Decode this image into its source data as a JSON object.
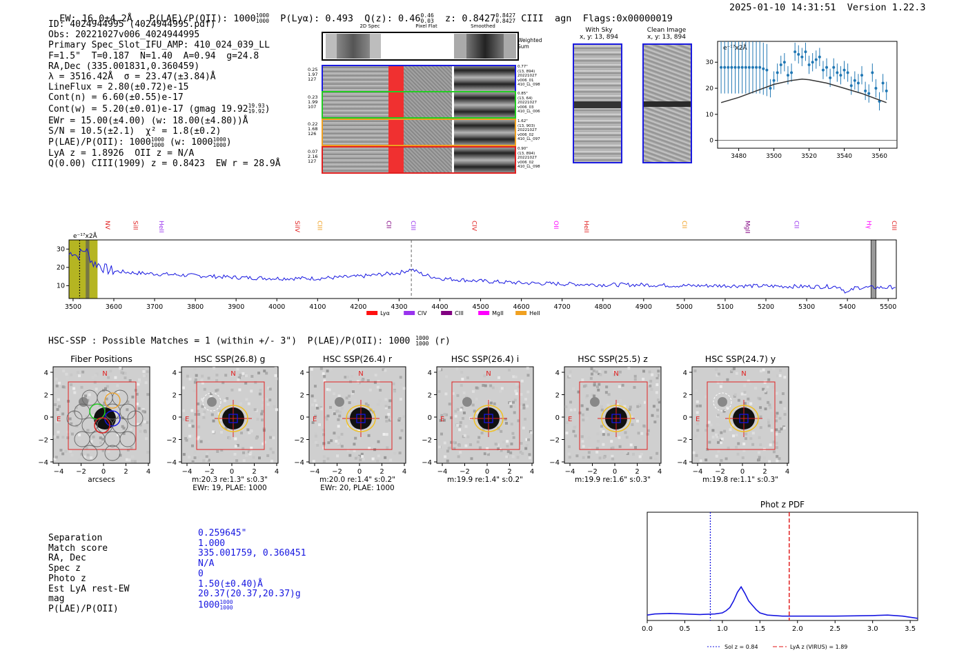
{
  "header": {
    "ew": "EW: 16.0±4.2Å",
    "plae_label": "P(LAE)/P(OII): 1000",
    "plae_hi": "1000",
    "plae_lo": "1000",
    "plya": "P(Lyα): 0.493",
    "qz": "Q(z): 0.46",
    "qz_hi": "0.46",
    "qz_lo": "0.03",
    "z": "z: 0.8427",
    "z_hi": "0.8427",
    "z_lo": "0.8427",
    "line": "CIII",
    "agn": "agn",
    "flags": "Flags:0x00000019",
    "timestamp": "2025-01-10 14:31:51",
    "version": "Version 1.22.3"
  },
  "info": {
    "id": "ID: 4024944995 (4024944995.pdf)",
    "obs": "Obs: 20221027v006_4024944995",
    "primary": "Primary Spec_Slot_IFU_AMP: 410_024_039_LL",
    "fiber": "F=1.5\"  T=0.187  N=1.40  A=0.94  g=24.8",
    "radec": "RA,Dec (335.001831,0.360459)",
    "lambda": "λ = 3516.42Å  σ = 23.47(±3.84)Å",
    "lineflux": "LineFlux = 2.80(±0.72)e-15",
    "contn": "Cont(n) = 6.60(±0.55)e-17",
    "contw": "Cont(w) = 5.20(±0.01)e-17 (gmag 19.92",
    "contw_hi": "19.93",
    "contw_lo": "19.92",
    "ewr": "EWr = 15.00(±4.00) (w: 18.00(±4.80))Å",
    "sn": "S/N = 10.5(±2.1)  χ² = 1.8(±0.2)",
    "plae": "P(LAE)/P(OII): 1000",
    "plae_hi": "1000",
    "plae_lo": "1000",
    "plae_w": "(w: 1000",
    "plae_w_hi": "1000",
    "plae_w_lo": "1000",
    "lya": "LyA z = 1.8926  OII z = N/A",
    "q": "Q(0.00) CIII(1909) z = 0.8423  EW r = 28.9Å"
  },
  "spec2d": {
    "col_titles": [
      "2D Spec",
      "Pixel Flat",
      "Smoothed"
    ],
    "weighted_sum": "Weighted\nSum",
    "rows": [
      {
        "left": [
          "0.25",
          "1.97",
          "127"
        ],
        "right": [
          "0.77\"",
          "(13, 894)",
          "20221027",
          "v006_01",
          "410_LL_098"
        ],
        "color": "#1a1ae0"
      },
      {
        "left": [
          "0.23",
          "1.99",
          "107"
        ],
        "right": [
          "0.85\"",
          "(13, 64)",
          "20221027",
          "v006_03",
          "410_LL_006"
        ],
        "color": "#22cc22"
      },
      {
        "left": [
          "0.22",
          "1.68",
          "126"
        ],
        "right": [
          "1.62\"",
          "(13, 903)",
          "20221027",
          "v006_02",
          "410_LL_097"
        ],
        "color": "#f0a020"
      },
      {
        "left": [
          "0.07",
          "2.16",
          "127"
        ],
        "right": [
          "0.90\"",
          "(13, 894)",
          "20221027",
          "v006_02",
          "410_LL_098"
        ],
        "color": "#e02020"
      }
    ]
  },
  "skypanels": {
    "with_sky": "With Sky",
    "with_sky_xy": "x, y: 13, 894",
    "clean": "Clean Image",
    "clean_xy": "x, y: 13, 894"
  },
  "chart_data": [
    {
      "type": "scatter",
      "title": "",
      "unit_label": "e⁻¹⁷x2Å",
      "xlim": [
        3468,
        3570
      ],
      "ylim": [
        -3,
        38
      ],
      "xticks": [
        3480,
        3500,
        3520,
        3540,
        3560
      ],
      "yticks": [
        0,
        10,
        20,
        30
      ],
      "points_x": [
        3470,
        3472,
        3474,
        3476,
        3478,
        3480,
        3482,
        3484,
        3486,
        3488,
        3490,
        3492,
        3494,
        3496,
        3498,
        3500,
        3502,
        3504,
        3506,
        3508,
        3510,
        3512,
        3514,
        3516,
        3518,
        3520,
        3522,
        3524,
        3526,
        3528,
        3530,
        3532,
        3534,
        3536,
        3538,
        3540,
        3542,
        3544,
        3546,
        3548,
        3550,
        3552,
        3554,
        3556,
        3558,
        3560,
        3562,
        3564
      ],
      "points_y": [
        28,
        28,
        28,
        28,
        28,
        28,
        28,
        28,
        28,
        28,
        28,
        28,
        27.5,
        27,
        20,
        23,
        26,
        29,
        30,
        25,
        26,
        34,
        33,
        32,
        34,
        29,
        30,
        31,
        32,
        27,
        28,
        24,
        28,
        26,
        25,
        27,
        26,
        21,
        23,
        22,
        25,
        19,
        18,
        26,
        20,
        15,
        22,
        19
      ],
      "model_x": [
        3470,
        3480,
        3490,
        3500,
        3510,
        3516,
        3520,
        3530,
        3540,
        3550,
        3560,
        3564
      ],
      "model_y": [
        14.5,
        16.5,
        19,
        21.5,
        23,
        23.5,
        23.3,
        22,
        20,
        18,
        15.5,
        14.5
      ]
    },
    {
      "type": "line",
      "title": "",
      "unit_label": "e⁻¹⁷x2Å",
      "xlim": [
        3490,
        5520
      ],
      "ylim": [
        3,
        35
      ],
      "xticks": [
        3500,
        3600,
        3700,
        3800,
        3900,
        4000,
        4100,
        4200,
        4300,
        4400,
        4500,
        4600,
        4700,
        4800,
        4900,
        5000,
        5100,
        5200,
        5300,
        5400,
        5500
      ],
      "yticks": [
        10,
        20,
        30
      ],
      "line_markers": [
        {
          "name": "NV",
          "x": 3580,
          "color": "#e02020"
        },
        {
          "name": "SiII",
          "x": 3648,
          "color": "#e02020"
        },
        {
          "name": "HeII",
          "x": 3712,
          "color": "#9933ee"
        },
        {
          "name": "SiIV",
          "x": 4045,
          "color": "#e02020"
        },
        {
          "name": "CIII",
          "x": 4100,
          "color": "#f0a020"
        },
        {
          "name": "CII",
          "x": 4270,
          "color": "#800080"
        },
        {
          "name": "CIII",
          "x": 4330,
          "color": "#9933ee"
        },
        {
          "name": "CIV",
          "x": 4480,
          "color": "#e02020"
        },
        {
          "name": "OII",
          "x": 4680,
          "color": "#ff00ff"
        },
        {
          "name": "HeII",
          "x": 4755,
          "color": "#e02020"
        },
        {
          "name": "CII",
          "x": 4995,
          "color": "#f0a020"
        },
        {
          "name": "MgII",
          "x": 5150,
          "color": "#800080"
        },
        {
          "name": "CII",
          "x": 5270,
          "color": "#9933ee"
        },
        {
          "name": "Hγ",
          "x": 5448,
          "color": "#ff00ff"
        },
        {
          "name": "CIII",
          "x": 5510,
          "color": "#e02020"
        }
      ],
      "legend": [
        {
          "label": "Lyα",
          "color": "#ff1010"
        },
        {
          "label": "CIV",
          "color": "#9933ee"
        },
        {
          "label": "CIII",
          "color": "#800080"
        },
        {
          "label": "MgII",
          "color": "#ff00ff"
        },
        {
          "label": "HeII",
          "color": "#f0a020"
        }
      ],
      "dashed_line_x": 4330,
      "highlight_x": [
        3490,
        3560
      ],
      "highlight_dark_x": [
        3531,
        3540
      ],
      "gray_band_x": [
        5458,
        5470
      ],
      "profile_x": [
        3490,
        3500,
        3510,
        3520,
        3530,
        3540,
        3550,
        3560,
        3580,
        3600,
        3650,
        3700,
        3800,
        3900,
        4000,
        4100,
        4200,
        4250,
        4300,
        4330,
        4360,
        4400,
        4500,
        4600,
        4700,
        4800,
        4900,
        5000,
        5100,
        5200,
        5300,
        5380,
        5400,
        5420,
        5500,
        5520
      ],
      "profile_y": [
        27,
        29,
        26,
        28,
        30,
        26,
        22,
        22,
        19,
        18,
        17,
        16.5,
        15.5,
        14.5,
        14,
        14,
        15,
        16,
        17,
        19,
        16,
        14,
        12.5,
        11.5,
        11,
        10.5,
        10.5,
        10,
        10,
        9.8,
        9.5,
        9.5,
        6,
        9,
        9,
        9.5
      ]
    },
    {
      "type": "line",
      "title": "Phot z PDF",
      "xlim": [
        0.0,
        3.6
      ],
      "ylim": [
        0,
        1.0
      ],
      "xticks": [
        0.0,
        0.5,
        1.0,
        1.5,
        2.0,
        2.5,
        3.0,
        3.5
      ],
      "x": [
        0.0,
        0.1,
        0.3,
        0.5,
        0.7,
        0.9,
        1.0,
        1.05,
        1.1,
        1.15,
        1.2,
        1.25,
        1.3,
        1.35,
        1.4,
        1.45,
        1.5,
        1.6,
        1.8,
        2.0,
        2.5,
        3.0,
        3.2,
        3.4,
        3.6
      ],
      "y": [
        0.05,
        0.06,
        0.065,
        0.06,
        0.055,
        0.06,
        0.07,
        0.09,
        0.12,
        0.18,
        0.26,
        0.31,
        0.25,
        0.18,
        0.14,
        0.1,
        0.07,
        0.05,
        0.04,
        0.04,
        0.04,
        0.045,
        0.05,
        0.04,
        0.02
      ],
      "sol_z": 0.84,
      "lya_z": 1.89,
      "legend": [
        "Sol z = 0.84",
        "LyA z (VIRUS) = 1.89"
      ]
    }
  ],
  "hsc": {
    "title": "HSC-SSP : Possible Matches = 1 (within +/- 3\")  P(LAE)/P(OII): 1000",
    "title_hi": "1000",
    "title_lo": "1000",
    "title_suffix": "(r)",
    "axis_ticks": [
      "4",
      "2",
      "0",
      "−2",
      "−4"
    ],
    "x_ticks": [
      "−4",
      "−2",
      "0",
      "2",
      "4"
    ],
    "north": "N",
    "east": "E",
    "panels": [
      {
        "title": "Fiber Positions",
        "cap1": "arcsecs",
        "cap2": ""
      },
      {
        "title": "HSC SSP(26.8) g",
        "cap1": "m:20.3  re:1.3\"  s:0.3\"",
        "cap2": "EWr: 19, PLAE: 1000"
      },
      {
        "title": "HSC SSP(26.4) r",
        "cap1": "m:20.0  re:1.4\"  s:0.2\"",
        "cap2": "EWr: 20, PLAE: 1000"
      },
      {
        "title": "HSC SSP(26.4) i",
        "cap1": "m:19.9  re:1.4\"  s:0.2\"",
        "cap2": ""
      },
      {
        "title": "HSC SSP(25.5) z",
        "cap1": "m:19.9  re:1.6\"  s:0.3\"",
        "cap2": ""
      },
      {
        "title": "HSC SSP(24.7) y",
        "cap1": "m:19.8  re:1.1\"  s:0.3\"",
        "cap2": ""
      }
    ]
  },
  "match": {
    "labels": [
      "Separation",
      "Match score",
      "RA, Dec",
      "Spec z",
      "Photo z",
      "Est LyA rest-EW",
      "mag",
      "P(LAE)/P(OII)"
    ],
    "values": [
      "0.259645\"",
      "1.000",
      "335.001759, 0.360451",
      "N/A",
      "0",
      "1.50(±0.40)Å",
      "20.37(20.37,20.37)g",
      "1000"
    ],
    "plae_hi": "1000",
    "plae_lo": "1000"
  }
}
